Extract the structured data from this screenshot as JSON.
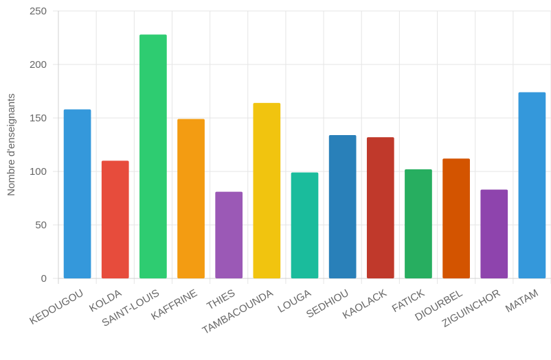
{
  "chart_data": {
    "type": "bar",
    "title": "",
    "xlabel": "",
    "ylabel": "Nombre d'enseignants",
    "ylim": [
      0,
      250
    ],
    "yticks": [
      0,
      50,
      100,
      150,
      200,
      250
    ],
    "grid": true,
    "legend": "none",
    "categories": [
      "KEDOUGOU",
      "KOLDA",
      "SAINT-LOUIS",
      "KAFFRINE",
      "THIES",
      "TAMBACOUNDA",
      "LOUGA",
      "SEDHIOU",
      "KAOLACK",
      "FATICK",
      "DIOURBEL",
      "ZIGUINCHOR",
      "MATAM"
    ],
    "values": [
      158,
      110,
      228,
      149,
      81,
      164,
      99,
      134,
      132,
      102,
      112,
      83,
      174
    ],
    "colors": [
      "#3498db",
      "#e74c3c",
      "#2ecc71",
      "#f39c12",
      "#9b59b6",
      "#f1c40f",
      "#1abc9c",
      "#2980b9",
      "#c0392b",
      "#27ae60",
      "#d35400",
      "#8e44ad",
      "#3498db"
    ]
  }
}
